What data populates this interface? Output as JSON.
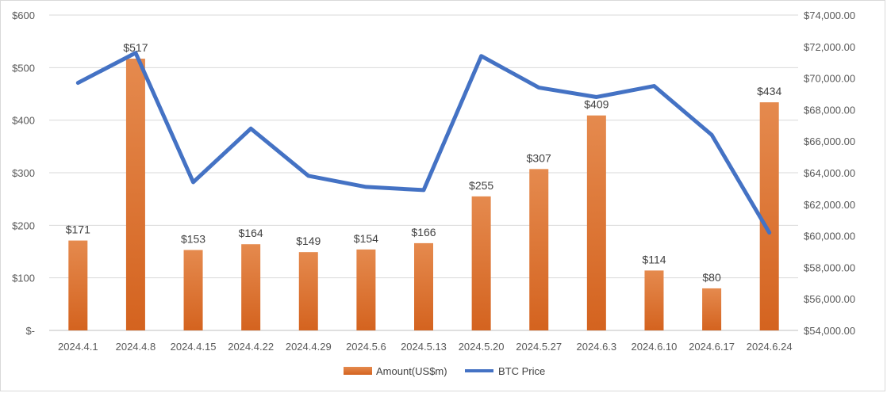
{
  "chart_data": {
    "type": "bar",
    "categories": [
      "2024.4.1",
      "2024.4.8",
      "2024.4.15",
      "2024.4.22",
      "2024.4.29",
      "2024.5.6",
      "2024.5.13",
      "2024.5.20",
      "2024.5.27",
      "2024.6.3",
      "2024.6.10",
      "2024.6.17",
      "2024.6.24"
    ],
    "series": [
      {
        "name": "Amount(US$m)",
        "type": "bar",
        "axis": "left",
        "values": [
          171,
          517,
          153,
          164,
          149,
          154,
          166,
          255,
          307,
          409,
          114,
          80,
          434
        ],
        "labels": [
          "$171",
          "$517",
          "$153",
          "$164",
          "$149",
          "$154",
          "$166",
          "$255",
          "$307",
          "$409",
          "$114",
          "$80",
          "$434"
        ],
        "color": "#E07A3A"
      },
      {
        "name": "BTC Price",
        "type": "line",
        "axis": "right",
        "values": [
          69700,
          71600,
          63400,
          66800,
          63800,
          63100,
          62900,
          71400,
          69400,
          68800,
          69500,
          66400,
          60200
        ],
        "color": "#4472C4"
      }
    ],
    "y_left": {
      "range": [
        0,
        600
      ],
      "ticks": [
        0,
        100,
        200,
        300,
        400,
        500,
        600
      ],
      "tick_labels": [
        "$-",
        "$100",
        "$200",
        "$300",
        "$400",
        "$500",
        "$600"
      ]
    },
    "y_right": {
      "range": [
        54000,
        74000
      ],
      "ticks": [
        54000,
        56000,
        58000,
        60000,
        62000,
        64000,
        66000,
        68000,
        70000,
        72000,
        74000
      ],
      "tick_labels": [
        "$54,000.00",
        "$56,000.00",
        "$58,000.00",
        "$60,000.00",
        "$62,000.00",
        "$64,000.00",
        "$66,000.00",
        "$68,000.00",
        "$70,000.00",
        "$72,000.00",
        "$74,000.00"
      ]
    },
    "grid": true,
    "legend": "bottom",
    "title": "",
    "xlabel": "",
    "ylabel": ""
  }
}
